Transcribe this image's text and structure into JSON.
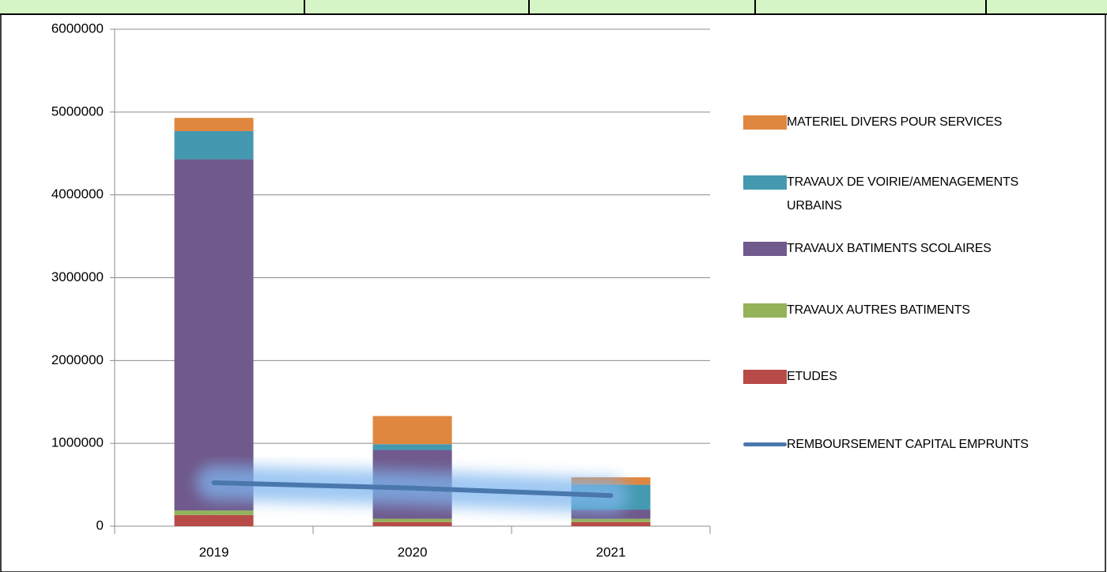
{
  "chart_data": {
    "type": "bar",
    "stacked": true,
    "categories": [
      "2019",
      "2020",
      "2021"
    ],
    "series": [
      {
        "name": "ETUDES",
        "color": "#b84a47",
        "values": [
          135000,
          50000,
          50000
        ]
      },
      {
        "name": "TRAVAUX AUTRES BATIMENTS",
        "color": "#93b25a",
        "values": [
          55000,
          40000,
          40000
        ]
      },
      {
        "name": "TRAVAUX BATIMENTS SCOLAIRES",
        "color": "#70598c",
        "values": [
          4240000,
          830000,
          110000
        ]
      },
      {
        "name": "TRAVAUX DE VOIRIE/AMENAGEMENTS URBAINS",
        "color": "#4499b0",
        "values": [
          340000,
          70000,
          300000
        ]
      },
      {
        "name": "MATERIEL DIVERS POUR SERVICES",
        "color": "#e0873f",
        "values": [
          160000,
          340000,
          90000
        ]
      },
      {
        "name": "REMBOURSEMENT CAPITAL EMPRUNTS",
        "type": "line",
        "color": "#4a77ad",
        "values": [
          525000,
          460000,
          370000
        ]
      }
    ],
    "ylim": [
      0,
      6000000
    ],
    "yticks": [
      0,
      1000000,
      2000000,
      3000000,
      4000000,
      5000000,
      6000000
    ],
    "grid": true,
    "legend": "right"
  }
}
